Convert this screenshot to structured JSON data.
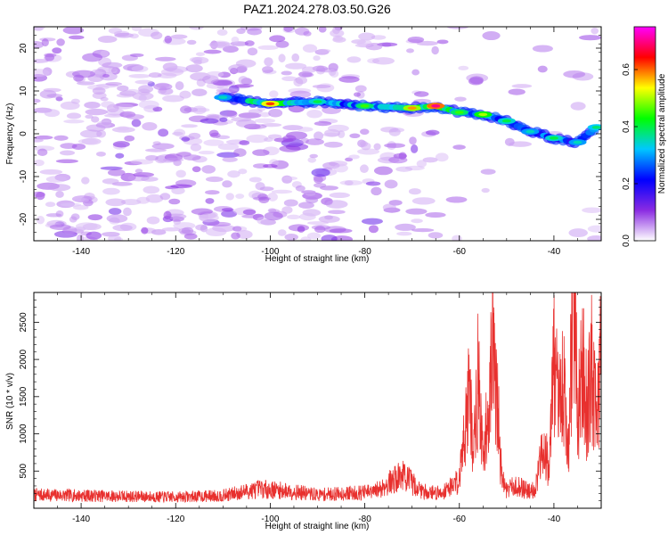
{
  "title": "PAZ1.2024.278.03.50.G26",
  "chart_data": [
    {
      "type": "heatmap",
      "xlabel": "Height of straight line (km)",
      "ylabel": "Frequency (Hz)",
      "xlim": [
        -150,
        -30
      ],
      "ylim": [
        -25,
        25
      ],
      "xticks": [
        -140,
        -120,
        -100,
        -80,
        -60,
        -40
      ],
      "yticks": [
        -20,
        -10,
        0,
        10,
        20
      ],
      "colorbar": {
        "label": "Normalized spectral amplitude",
        "range": [
          0.0,
          0.75
        ],
        "ticks": [
          "0.0",
          "0.2",
          "0.4",
          "0.6"
        ],
        "colors": [
          "#ffffff",
          "#8a2be2",
          "#0000ff",
          "#00c8ff",
          "#00ff00",
          "#ffff00",
          "#ff0000",
          "#ff00ff"
        ]
      },
      "ridge": [
        {
          "x": -110,
          "y": 8.5,
          "v": 0.35
        },
        {
          "x": -100,
          "y": 7.0,
          "v": 0.62
        },
        {
          "x": -90,
          "y": 7.5,
          "v": 0.4
        },
        {
          "x": -80,
          "y": 6.5,
          "v": 0.45
        },
        {
          "x": -70,
          "y": 6.0,
          "v": 0.58
        },
        {
          "x": -65,
          "y": 6.5,
          "v": 0.7
        },
        {
          "x": -60,
          "y": 5.0,
          "v": 0.45
        },
        {
          "x": -55,
          "y": 4.5,
          "v": 0.5
        },
        {
          "x": -50,
          "y": 3.0,
          "v": 0.4
        },
        {
          "x": -45,
          "y": 0.5,
          "v": 0.35
        },
        {
          "x": -40,
          "y": -1.0,
          "v": 0.4
        },
        {
          "x": -35,
          "y": -2.0,
          "v": 0.35
        },
        {
          "x": -31,
          "y": 1.5,
          "v": 0.38
        }
      ]
    },
    {
      "type": "line",
      "xlabel": "Height of straight line (km)",
      "ylabel": "SNR (10 * v/v)",
      "xlim": [
        -150,
        -30
      ],
      "ylim": [
        0,
        2900
      ],
      "xticks": [
        -140,
        -120,
        -100,
        -80,
        -60,
        -40
      ],
      "yticks": [
        500,
        1000,
        1500,
        2000,
        2500
      ],
      "color": "#e8302e",
      "series": [
        {
          "x": [
            -150,
            -140,
            -130,
            -120,
            -110,
            -102,
            -96,
            -90,
            -84,
            -78,
            -72,
            -68,
            -64,
            -60,
            -58,
            -57,
            -56,
            -55,
            -54,
            -53,
            -52,
            -51,
            -50,
            -48,
            -46,
            -44,
            -42,
            -41,
            -40,
            -39,
            -38,
            -37,
            -36,
            -35.5,
            -35,
            -34,
            -33,
            -32,
            -31,
            -30
          ],
          "y": [
            180,
            170,
            160,
            150,
            170,
            260,
            230,
            180,
            200,
            220,
            450,
            230,
            200,
            380,
            1650,
            700,
            1800,
            600,
            1300,
            2200,
            1400,
            400,
            250,
            300,
            250,
            250,
            900,
            500,
            2100,
            1200,
            1800,
            700,
            2600,
            2870,
            1100,
            2000,
            1300,
            1900,
            1100,
            2250
          ]
        }
      ]
    }
  ]
}
